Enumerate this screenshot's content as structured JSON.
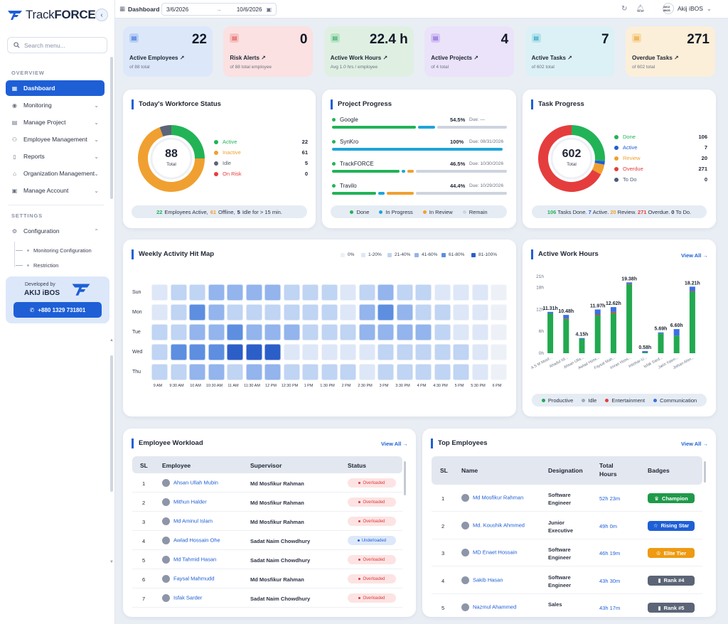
{
  "sidebar": {
    "brand_prefix": "Track",
    "brand_suffix": "FORCE",
    "search_placeholder": "Search menu...",
    "overview_label": "OVERVIEW",
    "settings_label": "SETTINGS",
    "items": [
      {
        "label": "Dashboard",
        "icon": "grid-icon"
      },
      {
        "label": "Monitoring",
        "icon": "eye-icon"
      },
      {
        "label": "Manage Project",
        "icon": "folder-icon"
      },
      {
        "label": "Employee Management",
        "icon": "users-icon"
      },
      {
        "label": "Reports",
        "icon": "file-icon"
      },
      {
        "label": "Organization Management",
        "icon": "building-icon"
      },
      {
        "label": "Manage Account",
        "icon": "account-icon"
      }
    ],
    "configuration": {
      "label": "Configuration",
      "subitems": [
        "Monitoring Configuration",
        "Restriction"
      ]
    },
    "developed_by": "Developed by",
    "dev_brand": "AKIJ iBOS",
    "phone": "+880 1329 731801"
  },
  "topbar": {
    "breadcrumb": "Dashboard",
    "date_from": "3/6/2026",
    "date_to": "10/6/2026",
    "user_name": "Akij iBOS",
    "user_avatar_text": "AKIJ iBOS"
  },
  "stats": [
    {
      "value": "22",
      "label": "Active Employees ↗",
      "sub": "of 88 total",
      "bg": "#dce8fa",
      "ico_bg": "#b9cff4",
      "ico_color": "#1e5fd6"
    },
    {
      "value": "0",
      "label": "Risk Alerts ↗",
      "sub": "of 88 total employee",
      "bg": "#fbe1e1",
      "ico_bg": "#f6c1c1",
      "ico_color": "#e04848"
    },
    {
      "value": "22.4 h",
      "label": "Active Work Hours ↗",
      "sub": "Avg 1.0 hrs / employee",
      "bg": "#dff0e3",
      "ico_bg": "#b9e3c4",
      "ico_color": "#22a356"
    },
    {
      "value": "4",
      "label": "Active Projects ↗",
      "sub": "of 4 total",
      "bg": "#ebe3f9",
      "ico_bg": "#d3c3f3",
      "ico_color": "#7a4fd9"
    },
    {
      "value": "7",
      "label": "Active Tasks ↗",
      "sub": "of 602 total",
      "bg": "#dcf1f6",
      "ico_bg": "#b6e2ec",
      "ico_color": "#1a9bbb"
    },
    {
      "value": "271",
      "label": "Overdue Tasks ↗",
      "sub": "of 602 total",
      "bg": "#fcefd9",
      "ico_bg": "#f8dbab",
      "ico_color": "#e89a1a"
    }
  ],
  "workforce": {
    "title": "Today's Workforce Status",
    "total": "88",
    "total_label": "Total",
    "legend": [
      {
        "label": "Active",
        "value": "22",
        "color": "#22b357"
      },
      {
        "label": "Inactive",
        "value": "61",
        "color": "#f0a030"
      },
      {
        "label": "Idle",
        "value": "5",
        "color": "#5b6478"
      },
      {
        "label": "On Risk",
        "value": "0",
        "color": "#e53d3d"
      }
    ],
    "footer": {
      "a_val": "22",
      "a_txt": "Employees Active,",
      "b_val": "61",
      "b_txt": "Offline,",
      "c_val": "5",
      "c_txt": "Idle for > 15 min."
    }
  },
  "projects": {
    "title": "Project Progress",
    "items": [
      {
        "name": "Google",
        "pct": "54.5%",
        "due": "Due: —",
        "done": 0.49,
        "prog": 0.1,
        "review": 0,
        "remain": 0.41
      },
      {
        "name": "SynKro",
        "pct": "100%",
        "due": "Due: 08/31/2026",
        "done": 0,
        "prog": 1.0,
        "review": 0,
        "remain": 0
      },
      {
        "name": "TrackFORCE",
        "pct": "46.5%",
        "due": "Due: 10/30/2026",
        "done": 0.4,
        "prog": 0.02,
        "review": 0.04,
        "remain": 0.54
      },
      {
        "name": "Travilo",
        "pct": "44.4%",
        "due": "Due: 10/29/2026",
        "done": 0.26,
        "prog": 0.04,
        "review": 0.16,
        "remain": 0.54
      }
    ],
    "legend": [
      "Done",
      "In Progress",
      "In Review",
      "Remain"
    ]
  },
  "tasks": {
    "title": "Task Progress",
    "total": "602",
    "total_label": "Total",
    "legend": [
      {
        "label": "Done",
        "value": "106",
        "color": "#22b357"
      },
      {
        "label": "Active",
        "value": "7",
        "color": "#1e5fd6"
      },
      {
        "label": "Review",
        "value": "20",
        "color": "#f0a030"
      },
      {
        "label": "Overdue",
        "value": "271",
        "color": "#e53d3d"
      },
      {
        "label": "To Do",
        "value": "0",
        "color": "#4a5a7a"
      }
    ],
    "footer": {
      "a": "106",
      "a_t": "Tasks Done.",
      "b": "7",
      "b_t": "Active.",
      "c": "20",
      "c_t": "Review.",
      "d": "271",
      "d_t": "Overdue.",
      "e": "0",
      "e_t": "To Do."
    }
  },
  "heatmap": {
    "title": "Weekly Activity Hit Map",
    "legend": [
      "0%",
      "1-20%",
      "21-40%",
      "41-60%",
      "61-80%",
      "81-100%"
    ],
    "legend_colors": [
      "#edf1f7",
      "#dde7f7",
      "#c0d4f3",
      "#93b4ec",
      "#5d8ee0",
      "#2c5ec8"
    ],
    "days": [
      "Sun",
      "Mon",
      "Tue",
      "Wed",
      "Thu"
    ],
    "times": [
      "9 AM",
      "9:30 AM",
      "10 AM",
      "10:30 AM",
      "11 AM",
      "11:30 AM",
      "12 PM",
      "12:30 PM",
      "1 PM",
      "1:30 PM",
      "2 PM",
      "2:30 PM",
      "3 PM",
      "3:30 PM",
      "4 PM",
      "4:30 PM",
      "5 PM",
      "5:30 PM",
      "6 PM"
    ],
    "levels": [
      [
        1,
        2,
        2,
        3,
        3,
        3,
        3,
        2,
        2,
        2,
        1,
        2,
        3,
        2,
        2,
        1,
        1,
        1,
        0
      ],
      [
        1,
        2,
        4,
        3,
        2,
        2,
        2,
        2,
        2,
        2,
        1,
        3,
        4,
        3,
        2,
        2,
        1,
        1,
        0
      ],
      [
        2,
        2,
        3,
        3,
        4,
        3,
        3,
        3,
        2,
        2,
        2,
        3,
        3,
        3,
        3,
        2,
        1,
        1,
        0
      ],
      [
        2,
        4,
        4,
        4,
        5,
        5,
        5,
        1,
        1,
        1,
        1,
        1,
        2,
        2,
        2,
        2,
        2,
        1,
        0
      ],
      [
        2,
        2,
        3,
        3,
        2,
        3,
        3,
        2,
        2,
        2,
        2,
        1,
        2,
        2,
        2,
        2,
        2,
        1,
        0
      ]
    ]
  },
  "work_hours": {
    "title": "Active Work Hours",
    "view_all": "View All →",
    "legend": [
      "Productive",
      "Idle",
      "Entertainment",
      "Communication"
    ]
  },
  "chart_data": {
    "type": "bar",
    "stacked": true,
    "yticks": [
      "0h",
      "6h",
      "12h",
      "18h",
      "21h"
    ],
    "ylim": [
      0,
      21
    ],
    "categories": [
      "A S M Moof...",
      "Ahadul Isl...",
      "Ahsan Ulla...",
      "Awlad Hoss...",
      "Faysal Mah...",
      "Imran Hoss...",
      "Intishar-U...",
      "Isfak Sard...",
      "Jarin Yasm...",
      "Jishan Ahm..."
    ],
    "data_labels": [
      "11.31h",
      "10.48h",
      "4.15h",
      "11.97h",
      "12.62h",
      "19.38h",
      "0.58h",
      "5.69h",
      "6.60h",
      "18.21h"
    ],
    "series": [
      {
        "name": "Productive",
        "color": "#22a94f",
        "values": [
          10.9,
          9.4,
          3.9,
          10.4,
          11.0,
          18.9,
          0.2,
          5.4,
          4.8,
          16.9
        ]
      },
      {
        "name": "Idle",
        "color": "#a0a8b6",
        "values": [
          0,
          0,
          0,
          0,
          0,
          0,
          0,
          0,
          0,
          0
        ]
      },
      {
        "name": "Entertainment",
        "color": "#e53d3d",
        "values": [
          0,
          0.1,
          0,
          0.2,
          0.3,
          0.1,
          0,
          0,
          0,
          0.1
        ]
      },
      {
        "name": "Communication",
        "color": "#3c70e0",
        "values": [
          0.41,
          0.98,
          0.25,
          1.37,
          1.32,
          0.38,
          0.38,
          0.29,
          1.8,
          1.21
        ]
      }
    ]
  },
  "workload": {
    "title": "Employee Workload",
    "view_all": "View All →",
    "headers": [
      "SL",
      "Employee",
      "Supervisor",
      "Status"
    ],
    "rows": [
      {
        "sl": "1",
        "emp": "Ahsan Ullah Mubin",
        "sup": "Md Mosfikur Rahman",
        "status": "Overloaded"
      },
      {
        "sl": "2",
        "emp": "Mithun Halder",
        "sup": "Md Mosfikur Rahman",
        "status": "Overloaded"
      },
      {
        "sl": "3",
        "emp": "Md Aminul Islam",
        "sup": "Md Mosfikur Rahman",
        "status": "Overloaded"
      },
      {
        "sl": "4",
        "emp": "Awlad Hossain Ohe",
        "sup": "Sadat Naim Chowdhury",
        "status": "Underloaded"
      },
      {
        "sl": "5",
        "emp": "Md Tahmid Hasan",
        "sup": "Sadat Naim Chowdhury",
        "status": "Overloaded"
      },
      {
        "sl": "6",
        "emp": "Faysal Mahmudd",
        "sup": "Md Mosfikur Rahman",
        "status": "Overloaded"
      },
      {
        "sl": "7",
        "emp": "Isfak Sarder",
        "sup": "Sadat Naim Chowdhury",
        "status": "Overloaded"
      }
    ]
  },
  "top": {
    "title": "Top Employees",
    "view_all": "View All →",
    "headers": [
      "SL",
      "Name",
      "Designation",
      "Total Hours",
      "Badges"
    ],
    "rows": [
      {
        "sl": "1",
        "name": "Md Mosfikur Rahman",
        "des": "Software Engineer",
        "hours": "52h 23m",
        "badge": "Champion",
        "color": "#1f9a4a",
        "icon": "trophy-icon"
      },
      {
        "sl": "2",
        "name": "Md. Koushik Ahmmed",
        "des": "Junior Executive",
        "hours": "49h 0m",
        "badge": "Rising Star",
        "color": "#1e5fd6",
        "icon": "star-icon"
      },
      {
        "sl": "3",
        "name": "MD Enaet Hossain",
        "des": "Software Engineer",
        "hours": "46h 19m",
        "badge": "Elite Tier",
        "color": "#ee9a12",
        "icon": "crown-icon"
      },
      {
        "sl": "4",
        "name": "Sakib Hasan",
        "des": "Software Engineer",
        "hours": "43h 30m",
        "badge": "Rank #4",
        "color": "#5b6577",
        "icon": "rank-icon"
      },
      {
        "sl": "5",
        "name": "Nazmul Ahammed",
        "des": "Sales",
        "hours": "43h 17m",
        "badge": "Rank #5",
        "color": "#5b6577",
        "icon": "rank-icon"
      }
    ]
  }
}
